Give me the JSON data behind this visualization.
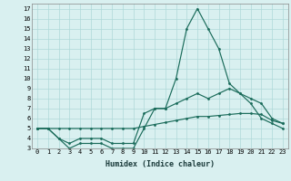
{
  "xlabel": "Humidex (Indice chaleur)",
  "background_color": "#d9f0f0",
  "line_color": "#1a6b5a",
  "grid_color": "#afd8d8",
  "xlim": [
    -0.5,
    23.5
  ],
  "ylim": [
    3,
    17.5
  ],
  "yticks": [
    3,
    4,
    5,
    6,
    7,
    8,
    9,
    10,
    11,
    12,
    13,
    14,
    15,
    16,
    17
  ],
  "xticks": [
    0,
    1,
    2,
    3,
    4,
    5,
    6,
    7,
    8,
    9,
    10,
    11,
    12,
    13,
    14,
    15,
    16,
    17,
    18,
    19,
    20,
    21,
    22,
    23
  ],
  "series1_x": [
    0,
    1,
    2,
    3,
    4,
    5,
    6,
    7,
    8,
    9,
    10,
    11,
    12,
    13,
    14,
    15,
    16,
    17,
    18,
    19,
    20,
    21,
    22,
    23
  ],
  "series1_y": [
    5,
    5,
    4,
    3,
    3.5,
    3.5,
    3.5,
    3,
    3,
    3,
    5,
    7,
    7,
    10,
    15,
    17,
    15,
    13,
    9.5,
    8.5,
    7.5,
    6,
    5.5,
    5
  ],
  "series2_x": [
    0,
    1,
    2,
    3,
    4,
    5,
    6,
    7,
    8,
    9,
    10,
    11,
    12,
    13,
    14,
    15,
    16,
    17,
    18,
    19,
    20,
    21,
    22,
    23
  ],
  "series2_y": [
    5,
    5,
    4,
    3.5,
    4,
    4,
    4,
    3.5,
    3.5,
    3.5,
    6.5,
    7,
    7,
    7.5,
    8,
    8.5,
    8,
    8.5,
    9,
    8.5,
    8,
    7.5,
    6,
    5.5
  ],
  "series3_x": [
    0,
    1,
    2,
    3,
    4,
    5,
    6,
    7,
    8,
    9,
    10,
    11,
    12,
    13,
    14,
    15,
    16,
    17,
    18,
    19,
    20,
    21,
    22,
    23
  ],
  "series3_y": [
    5,
    5,
    5,
    5,
    5,
    5,
    5,
    5,
    5,
    5,
    5.2,
    5.4,
    5.6,
    5.8,
    6.0,
    6.2,
    6.2,
    6.3,
    6.4,
    6.5,
    6.5,
    6.4,
    5.8,
    5.5
  ]
}
